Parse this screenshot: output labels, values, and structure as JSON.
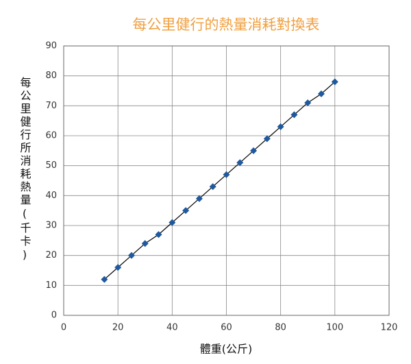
{
  "chart_data": {
    "type": "scatter",
    "title": "每公里健行的熱量消耗對換表",
    "x_label": "體重(公斤)",
    "y_label": "每公里健行所消耗熱量(千卡)",
    "x": [
      15,
      20,
      25,
      30,
      35,
      40,
      45,
      50,
      55,
      60,
      65,
      70,
      75,
      80,
      85,
      90,
      95,
      100
    ],
    "series": [
      {
        "color": "#1f5a9e",
        "values": [
          12,
          16,
          20,
          24,
          27,
          31,
          35,
          39,
          43,
          47,
          51,
          55,
          59,
          63,
          67,
          71,
          74,
          78
        ]
      }
    ],
    "line_color": "#000000",
    "xlim": [
      0,
      120
    ],
    "xticks": [
      0,
      20,
      40,
      60,
      80,
      100,
      120
    ],
    "ylim": [
      0,
      90
    ],
    "yticks": [
      0,
      10,
      20,
      30,
      40,
      50,
      60,
      70,
      80,
      90
    ],
    "grid": true
  }
}
